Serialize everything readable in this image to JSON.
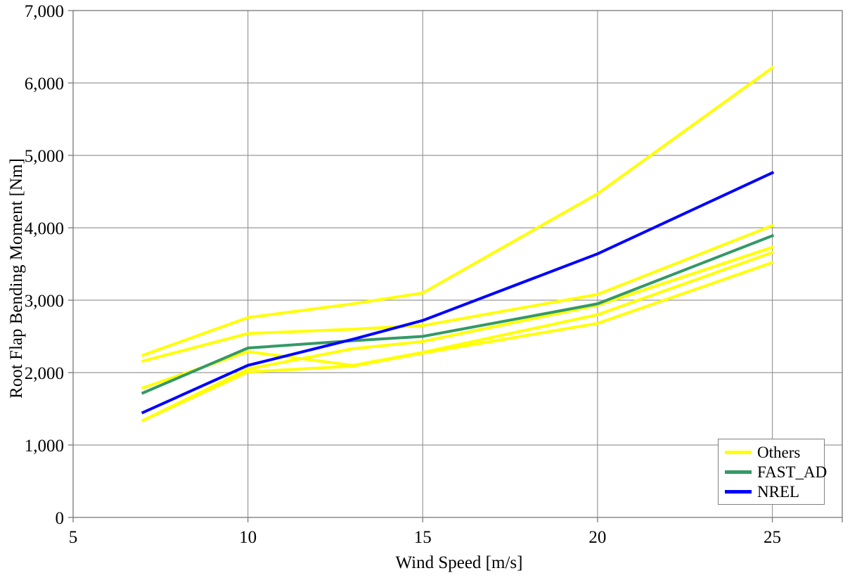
{
  "chart_data": {
    "type": "line",
    "title": "",
    "xlabel": "Wind Speed [m/s]",
    "ylabel": "Root Flap Bending Moment [Nm]",
    "xlim": [
      5,
      27
    ],
    "ylim": [
      0,
      7000
    ],
    "xticks": [
      5,
      10,
      15,
      20,
      25
    ],
    "xtick_labels": [
      "5",
      "10",
      "15",
      "20",
      "25"
    ],
    "yticks": [
      0,
      1000,
      2000,
      3000,
      4000,
      5000,
      6000,
      7000
    ],
    "ytick_labels": [
      "0",
      "1,000",
      "2,000",
      "3,000",
      "4,000",
      "5,000",
      "6,000",
      "7,000"
    ],
    "grid": true,
    "legend_position": "bottom-right",
    "x": [
      7,
      10,
      13,
      15,
      20,
      25
    ],
    "series": [
      {
        "name": "Others",
        "color": "#FFFF00",
        "values": [
          2240,
          2760,
          2950,
          3100,
          4470,
          6210
        ]
      },
      {
        "name": "Others",
        "color": "#FFFF00",
        "values": [
          2160,
          2540,
          2600,
          2650,
          3080,
          4030
        ]
      },
      {
        "name": "Others",
        "color": "#FFFF00",
        "values": [
          1790,
          2290,
          2100,
          2280,
          2800,
          3660
        ]
      },
      {
        "name": "Others",
        "color": "#FFFF00",
        "values": [
          1340,
          2050,
          2330,
          2430,
          2930,
          3730
        ]
      },
      {
        "name": "Others",
        "color": "#FFFF00",
        "values": [
          1340,
          2010,
          2090,
          2270,
          2680,
          3520
        ]
      },
      {
        "name": "FAST_AD",
        "color": "#339966",
        "values": [
          1720,
          2340,
          2440,
          2500,
          2950,
          3890
        ]
      },
      {
        "name": "NREL",
        "color": "#0000FF",
        "values": [
          1450,
          2100,
          2460,
          2720,
          3640,
          4760
        ]
      }
    ],
    "legend": {
      "items": [
        {
          "label": "Others",
          "color": "#FFFF00"
        },
        {
          "label": "FAST_AD",
          "color": "#339966"
        },
        {
          "label": "NREL",
          "color": "#0000FF"
        }
      ]
    }
  },
  "colors": {
    "background": "#FFFFFF",
    "gridline": "#999999",
    "axis": "#808080",
    "text": "#000000",
    "legend_border": "#808080"
  }
}
